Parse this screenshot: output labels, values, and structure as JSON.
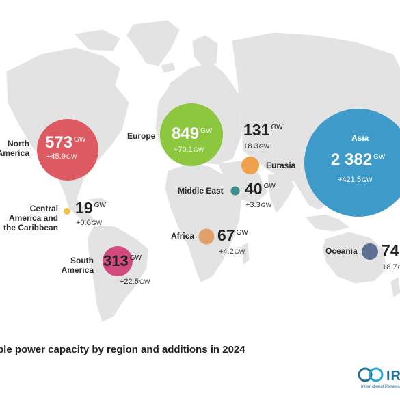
{
  "title": "ble power capacity by region and additions in 2024",
  "logo": {
    "text": "IR",
    "subtext": "International Renewa"
  },
  "unit": "GW",
  "colors": {
    "north_america": "#de5a62",
    "europe": "#8dc63f",
    "asia": "#3d9ac9",
    "eurasia": "#f0a04b",
    "middle_east": "#3a8e8e",
    "central_america": "#f5c242",
    "south_america": "#d24a7e",
    "africa": "#e0a067",
    "oceania": "#5d6f92",
    "land": "#e3e3e3"
  },
  "regions": [
    {
      "id": "north_america",
      "name_line1": "North",
      "name_line2": "America",
      "capacity": "573",
      "addition": "+45.9"
    },
    {
      "id": "europe",
      "name_line1": "Europe",
      "capacity": "849",
      "addition": "+70.1"
    },
    {
      "id": "eurasia",
      "name_line1": "Eurasia",
      "capacity": "131",
      "addition": "+8.3"
    },
    {
      "id": "asia",
      "name_line1": "Asia",
      "capacity": "2 382",
      "addition": "+421.5"
    },
    {
      "id": "middle_east",
      "name_line1": "Middle East",
      "capacity": "40",
      "addition": "+3.3"
    },
    {
      "id": "central_america",
      "name_line1": "Central",
      "name_line2": "America and",
      "name_line3": "the Caribbean",
      "capacity": "19",
      "addition": "+0.6"
    },
    {
      "id": "africa",
      "name_line1": "Africa",
      "capacity": "67",
      "addition": "+4.2"
    },
    {
      "id": "south_america",
      "name_line1": "South",
      "name_line2": "America",
      "capacity": "313",
      "addition": "+22.5"
    },
    {
      "id": "oceania",
      "name_line1": "Oceania",
      "capacity": "74",
      "addition": "+8.7"
    }
  ]
}
